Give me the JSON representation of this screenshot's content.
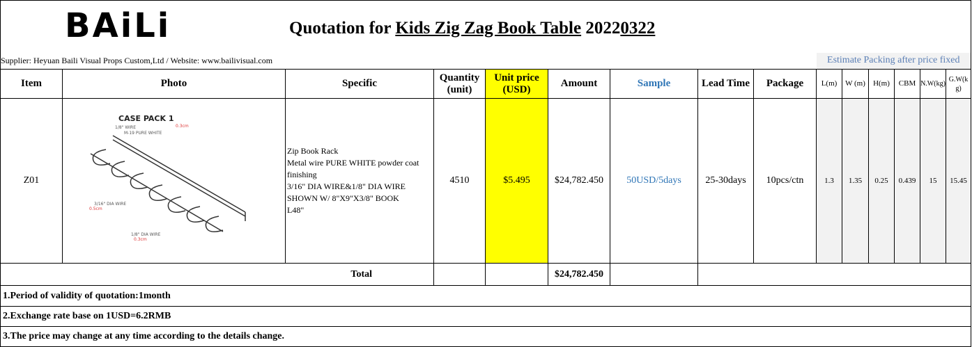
{
  "header": {
    "logo": "BAiLi",
    "title": {
      "prefix": "Quotation for ",
      "product": "Kids Zig Zag Book Table",
      "date_a": " 2022",
      "date_b": "0322"
    },
    "supplier": "Supplier: Heyuan Baili Visual Props Custom,Ltd   / Website: www.bailivisual.com",
    "packing_note": "Estimate Packing after price fixed"
  },
  "table": {
    "columns": [
      "Item",
      "Photo",
      "Specific",
      "Quantity (unit)",
      "Unit price (USD)",
      "Amount",
      "Sample",
      "Lead Time",
      "Package",
      "L(m)",
      "W (m)",
      "H(m)",
      "CBM",
      "N.W(kg)",
      "G.W(kg)"
    ],
    "rows": [
      {
        "item": "Z01",
        "photo": {
          "labels": [
            "CASE PACK 1",
            "1/8\" WIRE",
            "0.3cm",
            "M-19 PURE WHITE",
            "3/16\" DIA WIRE",
            "0.5cm",
            "1/8\" DIA WIRE",
            "0.3cm"
          ]
        },
        "specific": [
          "Zip Book Rack",
          "Metal wire PURE WHITE powder coat finishing",
          "3/16\" DIA WIRE&1/8\" DIA WIRE SHOWN W/ 8\"X9\"X3/8\" BOOK",
          "L48\""
        ],
        "quantity": 4510,
        "unit_price": "$5.495",
        "amount": "$24,782.450",
        "sample": "50USD/5days",
        "lead_time": "25-30days",
        "package": "10pcs/ctn",
        "l": 1.3,
        "w": 1.35,
        "h": 0.25,
        "cbm": 0.439,
        "nw": 15,
        "gw": 15.45
      }
    ],
    "total": {
      "label": "Total",
      "amount": "$24,782.450"
    }
  },
  "notes": [
    "1.Period of validity of quotation:1month",
    "2.Exchange rate base on 1USD=6.2RMB",
    "3.The price may change at any time according to the details change."
  ]
}
